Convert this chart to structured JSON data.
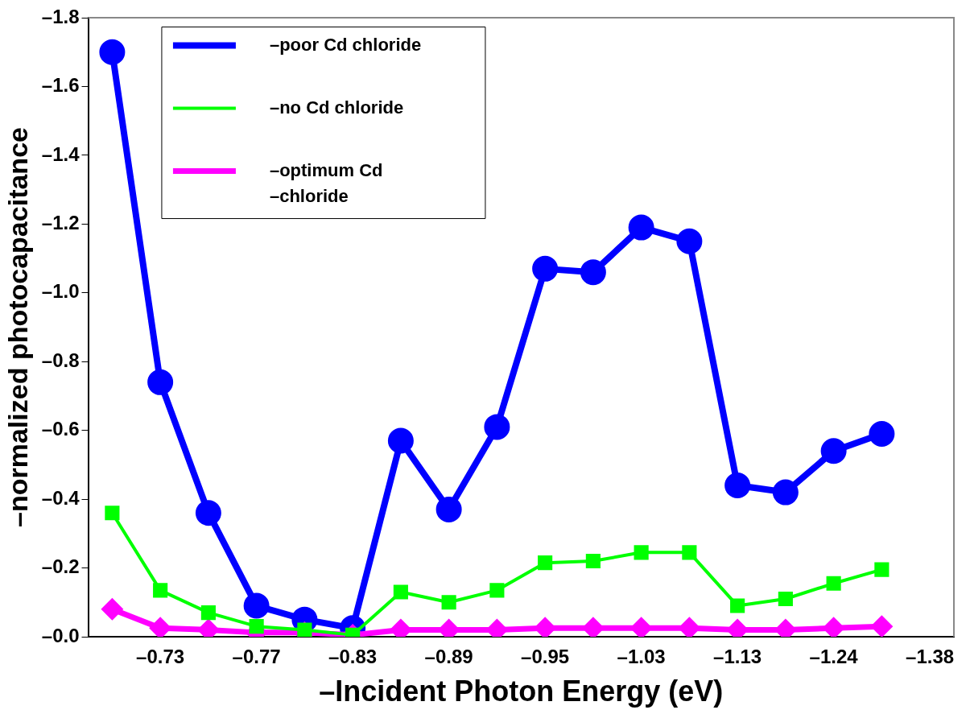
{
  "chart_data": {
    "type": "line",
    "xlabel": "–Incident Photon Energy (eV)",
    "ylabel": "–normalized photocapacitance",
    "categories": [
      null,
      "–0.73",
      null,
      "–0.77",
      null,
      "–0.83",
      null,
      "–0.89",
      null,
      "–0.95",
      null,
      "–1.03",
      null,
      "–1.13",
      null,
      "–1.24",
      null,
      "–1.38"
    ],
    "ylim": [
      0,
      -1.8
    ],
    "yticks": [
      {
        "value": 0,
        "label": "–0.0"
      },
      {
        "value": -0.2,
        "label": "–0.2"
      },
      {
        "value": -0.4,
        "label": "–0.4"
      },
      {
        "value": -0.6,
        "label": "–0.6"
      },
      {
        "value": -0.8,
        "label": "–0.8"
      },
      {
        "value": -1.0,
        "label": "–1.0"
      },
      {
        "value": -1.2,
        "label": "–1.2"
      },
      {
        "value": -1.4,
        "label": "–1.4"
      },
      {
        "value": -1.6,
        "label": "–1.6"
      },
      {
        "value": -1.8,
        "label": "–1.8"
      }
    ],
    "grid": false,
    "legend": "top left",
    "series": [
      {
        "name": "–poor Cd chloride",
        "color": "#0000ff",
        "marker": "circle",
        "values": [
          -1.7,
          -0.74,
          -0.36,
          -0.09,
          -0.05,
          -0.025,
          -0.57,
          -0.37,
          -0.61,
          -1.07,
          -1.06,
          -1.19,
          -1.15,
          -0.44,
          -0.42,
          -0.54,
          -0.59,
          null
        ]
      },
      {
        "name": "–no Cd chloride",
        "color": "#00ff00",
        "marker": "square",
        "values": [
          -0.36,
          -0.135,
          -0.07,
          -0.03,
          -0.02,
          -0.005,
          -0.13,
          -0.1,
          -0.135,
          -0.215,
          -0.22,
          -0.245,
          -0.245,
          -0.09,
          -0.11,
          -0.155,
          -0.195,
          null
        ]
      },
      {
        "name": "–optimum Cd –chloride",
        "color": "#ff00ff",
        "marker": "diamond",
        "values": [
          -0.08,
          -0.025,
          -0.02,
          -0.012,
          -0.012,
          -0.005,
          -0.02,
          -0.02,
          -0.02,
          -0.025,
          -0.025,
          -0.025,
          -0.025,
          -0.02,
          -0.02,
          -0.025,
          -0.03,
          null
        ]
      }
    ]
  }
}
